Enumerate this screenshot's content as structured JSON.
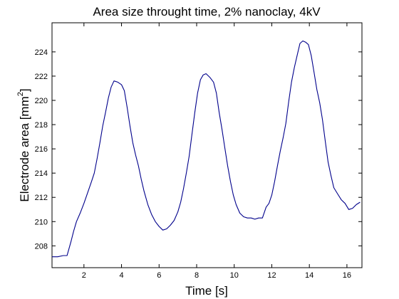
{
  "chart_data": {
    "type": "line",
    "title": "Area size throught time, 2% nanoclay, 4kV",
    "xlabel": "Time [s]",
    "ylabel": "Electrode area [mm",
    "ylabel_sup": "2",
    "ylabel_close": "]",
    "xlim": [
      0.3,
      16.8
    ],
    "ylim": [
      206.2,
      226.4
    ],
    "xticks": [
      2,
      4,
      6,
      8,
      10,
      12,
      14,
      16
    ],
    "yticks": [
      208,
      210,
      212,
      214,
      216,
      218,
      220,
      222,
      224
    ],
    "grid": false,
    "line_color": "#00008b",
    "series": [
      {
        "x": [
          0.3,
          0.6,
          0.9,
          1.1,
          1.3,
          1.45,
          1.6,
          1.8,
          2.0,
          2.2,
          2.4,
          2.55,
          2.7,
          2.85,
          3.0,
          3.15,
          3.3,
          3.45,
          3.6,
          3.8,
          4.0,
          4.15,
          4.3,
          4.45,
          4.6,
          4.75,
          4.9,
          5.05,
          5.2,
          5.4,
          5.6,
          5.8,
          6.0,
          6.2,
          6.4,
          6.6,
          6.8,
          7.0,
          7.15,
          7.3,
          7.45,
          7.6,
          7.75,
          7.9,
          8.05,
          8.2,
          8.35,
          8.5,
          8.7,
          8.9,
          9.05,
          9.2,
          9.35,
          9.5,
          9.65,
          9.8,
          9.95,
          10.1,
          10.3,
          10.5,
          10.7,
          10.9,
          11.1,
          11.3,
          11.5,
          11.7,
          11.85,
          12.0,
          12.15,
          12.3,
          12.45,
          12.6,
          12.75,
          12.9,
          13.05,
          13.2,
          13.35,
          13.5,
          13.65,
          13.8,
          13.95,
          14.1,
          14.25,
          14.4,
          14.55,
          14.7,
          14.85,
          15.0,
          15.15,
          15.3,
          15.5,
          15.7,
          15.9,
          16.1,
          16.3,
          16.5,
          16.7
        ],
        "y": [
          207.1,
          207.1,
          207.2,
          207.2,
          208.3,
          209.2,
          210.0,
          210.7,
          211.5,
          212.4,
          213.3,
          214.0,
          215.2,
          216.5,
          217.9,
          219.0,
          220.2,
          221.1,
          221.6,
          221.5,
          221.3,
          220.8,
          219.4,
          217.9,
          216.5,
          215.5,
          214.6,
          213.5,
          212.5,
          211.4,
          210.6,
          210.0,
          209.6,
          209.3,
          209.4,
          209.7,
          210.1,
          210.8,
          211.6,
          212.7,
          214.0,
          215.4,
          217.2,
          219.0,
          220.6,
          221.7,
          222.1,
          222.2,
          221.9,
          221.5,
          220.6,
          219.0,
          217.6,
          216.1,
          214.6,
          213.3,
          212.2,
          211.4,
          210.7,
          210.4,
          210.3,
          210.3,
          210.2,
          210.3,
          210.3,
          211.2,
          211.5,
          212.2,
          213.3,
          214.6,
          215.8,
          216.9,
          218.1,
          219.9,
          221.5,
          222.7,
          223.7,
          224.7,
          224.9,
          224.8,
          224.6,
          223.7,
          222.3,
          220.9,
          219.8,
          218.4,
          216.6,
          214.9,
          213.8,
          212.8,
          212.3,
          211.8,
          211.5,
          211.0,
          211.1,
          211.4,
          211.6
        ]
      }
    ]
  }
}
